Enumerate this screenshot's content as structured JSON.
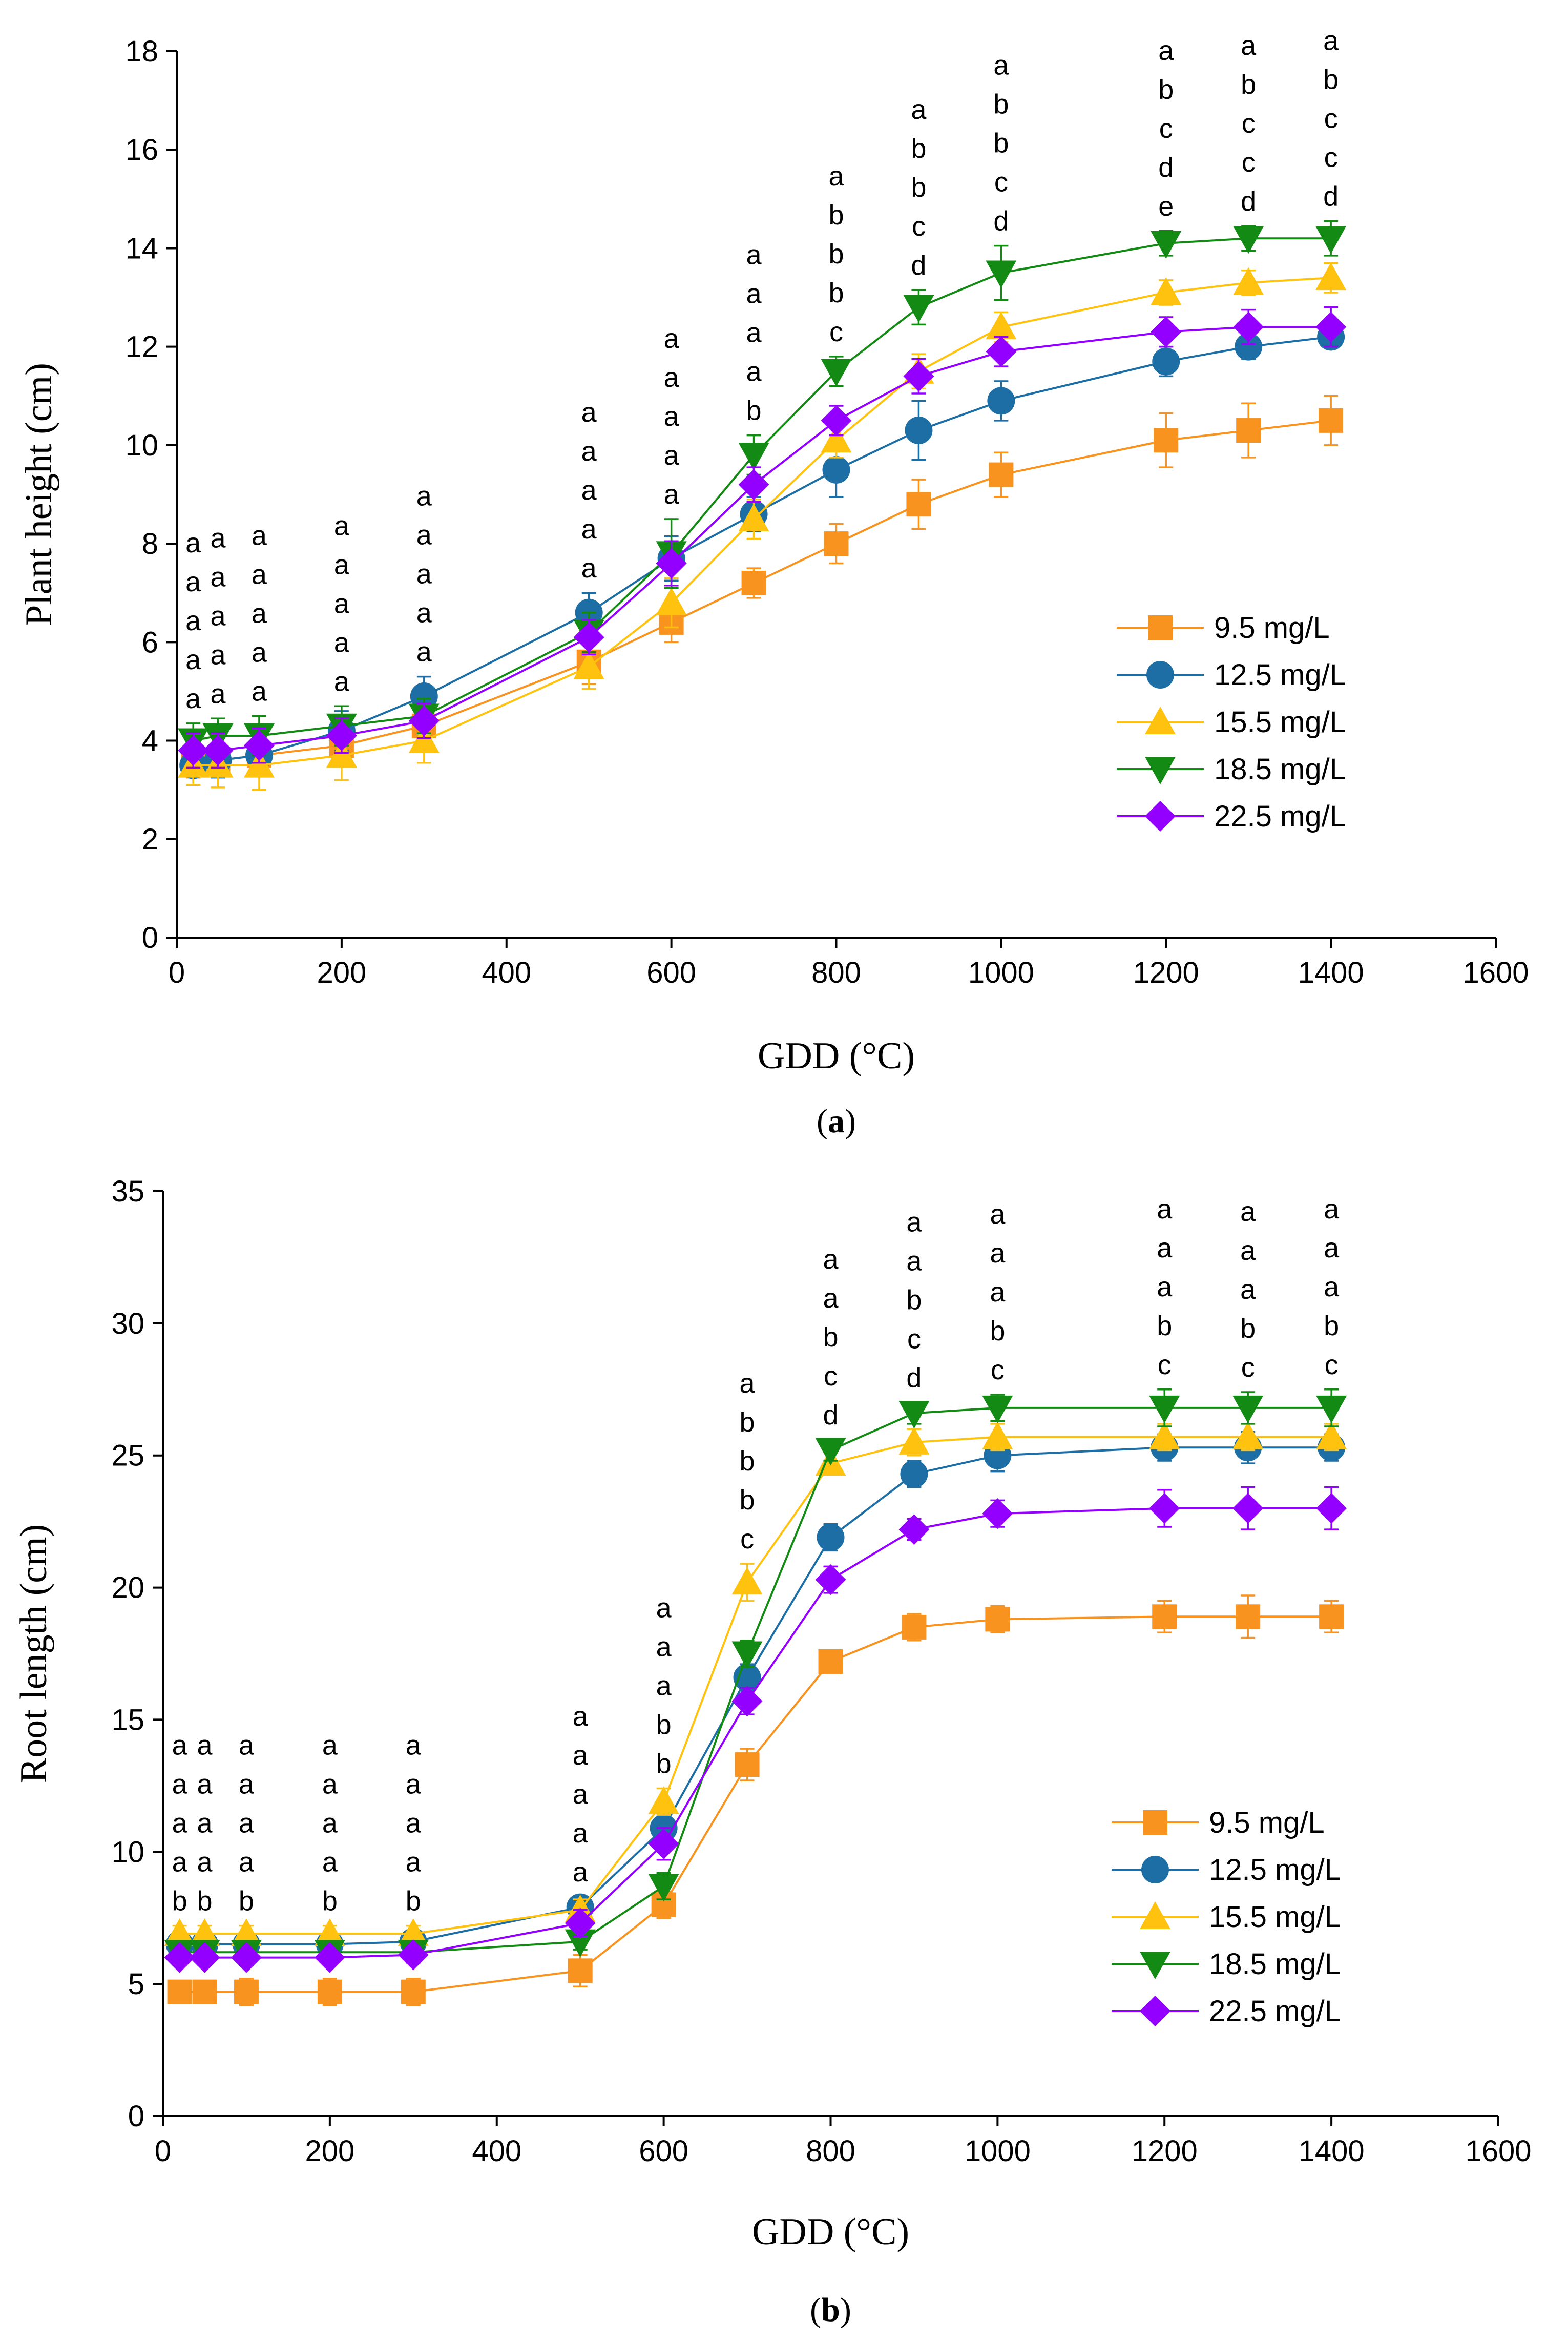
{
  "chart_data": [
    {
      "type": "line",
      "panel_label": "a",
      "title": "",
      "xlabel": "GDD (°C)",
      "ylabel": "Plant height (cm)",
      "xlim": [
        0,
        1600
      ],
      "ylim": [
        0,
        18
      ],
      "xticks": [
        0,
        200,
        400,
        600,
        800,
        1000,
        1200,
        1400,
        1600
      ],
      "yticks": [
        0,
        2,
        4,
        6,
        8,
        10,
        12,
        14,
        16,
        18
      ],
      "grid": false,
      "legend_position": "lower-right",
      "x": [
        20,
        50,
        100,
        200,
        300,
        500,
        600,
        700,
        800,
        900,
        1000,
        1200,
        1300,
        1400
      ],
      "series": [
        {
          "name": "9.5 mg/L",
          "color": "#f7931e",
          "marker": "square",
          "values": [
            3.6,
            3.6,
            3.7,
            3.9,
            4.3,
            5.6,
            6.4,
            7.2,
            8.0,
            8.8,
            9.4,
            10.1,
            10.3,
            10.5
          ],
          "errors": [
            0.35,
            0.35,
            0.35,
            0.4,
            0.45,
            0.45,
            0.4,
            0.3,
            0.4,
            0.5,
            0.45,
            0.55,
            0.55,
            0.5
          ]
        },
        {
          "name": "12.5 mg/L",
          "color": "#1c6ea4",
          "marker": "circle",
          "values": [
            3.5,
            3.6,
            3.7,
            4.2,
            4.9,
            6.6,
            7.7,
            8.6,
            9.5,
            10.3,
            10.9,
            11.7,
            12.0,
            12.2
          ],
          "errors": [
            0.4,
            0.35,
            0.35,
            0.4,
            0.4,
            0.4,
            0.45,
            0.35,
            0.55,
            0.6,
            0.4,
            0.3,
            0.25,
            0.2
          ]
        },
        {
          "name": "15.5 mg/L",
          "color": "#ffc20e",
          "marker": "triangle-up",
          "values": [
            3.5,
            3.5,
            3.5,
            3.7,
            4.0,
            5.5,
            6.8,
            8.5,
            10.1,
            11.5,
            12.4,
            13.1,
            13.3,
            13.4
          ],
          "errors": [
            0.4,
            0.45,
            0.5,
            0.5,
            0.45,
            0.45,
            0.5,
            0.4,
            0.35,
            0.35,
            0.3,
            0.25,
            0.25,
            0.3
          ]
        },
        {
          "name": "18.5 mg/L",
          "color": "#138a13",
          "marker": "triangle-down",
          "values": [
            4.0,
            4.1,
            4.1,
            4.3,
            4.5,
            6.2,
            7.8,
            9.8,
            11.5,
            12.8,
            13.5,
            14.1,
            14.2,
            14.2
          ],
          "errors": [
            0.35,
            0.35,
            0.4,
            0.4,
            0.35,
            0.4,
            0.7,
            0.4,
            0.3,
            0.35,
            0.55,
            0.25,
            0.25,
            0.35
          ]
        },
        {
          "name": "22.5 mg/L",
          "color": "#9400ff",
          "marker": "diamond",
          "values": [
            3.8,
            3.8,
            3.9,
            4.1,
            4.4,
            6.1,
            7.6,
            9.2,
            10.5,
            11.4,
            11.9,
            12.3,
            12.4,
            12.4
          ],
          "errors": [
            0.35,
            0.35,
            0.35,
            0.35,
            0.35,
            0.35,
            0.45,
            0.35,
            0.3,
            0.35,
            0.3,
            0.3,
            0.35,
            0.4
          ]
        }
      ],
      "annotations": [
        {
          "x": 20,
          "letters": [
            "a",
            "a",
            "a",
            "a",
            "a"
          ]
        },
        {
          "x": 50,
          "letters": [
            "a",
            "a",
            "a",
            "a",
            "a"
          ]
        },
        {
          "x": 100,
          "letters": [
            "a",
            "a",
            "a",
            "a",
            "a"
          ]
        },
        {
          "x": 200,
          "letters": [
            "a",
            "a",
            "a",
            "a",
            "a"
          ]
        },
        {
          "x": 300,
          "letters": [
            "a",
            "a",
            "a",
            "a",
            "a"
          ]
        },
        {
          "x": 500,
          "letters": [
            "a",
            "a",
            "a",
            "a",
            "a"
          ]
        },
        {
          "x": 600,
          "letters": [
            "a",
            "a",
            "a",
            "a",
            "a"
          ]
        },
        {
          "x": 700,
          "letters": [
            "a",
            "a",
            "a",
            "a",
            "b"
          ]
        },
        {
          "x": 800,
          "letters": [
            "a",
            "b",
            "b",
            "b",
            "c"
          ]
        },
        {
          "x": 900,
          "letters": [
            "a",
            "b",
            "b",
            "c",
            "d"
          ]
        },
        {
          "x": 1000,
          "letters": [
            "a",
            "b",
            "b",
            "c",
            "d"
          ]
        },
        {
          "x": 1200,
          "letters": [
            "a",
            "b",
            "c",
            "d",
            "e"
          ]
        },
        {
          "x": 1300,
          "letters": [
            "a",
            "b",
            "c",
            "c",
            "d"
          ]
        },
        {
          "x": 1400,
          "letters": [
            "a",
            "b",
            "c",
            "c",
            "d"
          ]
        }
      ]
    },
    {
      "type": "line",
      "panel_label": "b",
      "title": "",
      "xlabel": "GDD (°C)",
      "ylabel": "Root length (cm)",
      "xlim": [
        0,
        1600
      ],
      "ylim": [
        0,
        35
      ],
      "xticks": [
        0,
        200,
        400,
        600,
        800,
        1000,
        1200,
        1400,
        1600
      ],
      "yticks": [
        0,
        5,
        10,
        15,
        20,
        25,
        30,
        35
      ],
      "grid": false,
      "legend_position": "lower-right",
      "x": [
        20,
        50,
        100,
        200,
        300,
        500,
        600,
        700,
        800,
        900,
        1000,
        1200,
        1300,
        1400
      ],
      "series": [
        {
          "name": "9.5 mg/L",
          "color": "#f7931e",
          "marker": "square",
          "values": [
            4.7,
            4.7,
            4.7,
            4.7,
            4.7,
            5.5,
            8.0,
            13.3,
            17.2,
            18.5,
            18.8,
            18.9,
            18.9,
            18.9
          ],
          "errors": [
            0.4,
            0.4,
            0.5,
            0.5,
            0.5,
            0.6,
            0.5,
            0.6,
            0.4,
            0.5,
            0.5,
            0.6,
            0.8,
            0.6
          ]
        },
        {
          "name": "12.5 mg/L",
          "color": "#1c6ea4",
          "marker": "circle",
          "values": [
            6.5,
            6.5,
            6.5,
            6.5,
            6.6,
            7.9,
            10.9,
            16.6,
            21.9,
            24.3,
            25.0,
            25.3,
            25.3,
            25.3
          ],
          "errors": [
            0.3,
            0.3,
            0.3,
            0.3,
            0.3,
            0.4,
            0.6,
            0.5,
            0.5,
            0.5,
            0.6,
            0.5,
            0.6,
            0.5
          ]
        },
        {
          "name": "15.5 mg/L",
          "color": "#ffc20e",
          "marker": "triangle-up",
          "values": [
            6.9,
            6.9,
            6.9,
            6.9,
            6.9,
            7.8,
            11.9,
            20.2,
            24.7,
            25.5,
            25.7,
            25.7,
            25.7,
            25.7
          ],
          "errors": [
            0.3,
            0.3,
            0.3,
            0.3,
            0.3,
            0.4,
            0.5,
            0.7,
            0.4,
            0.5,
            0.5,
            0.5,
            0.5,
            0.5
          ]
        },
        {
          "name": "18.5 mg/L",
          "color": "#138a13",
          "marker": "triangle-down",
          "values": [
            6.2,
            6.2,
            6.2,
            6.2,
            6.2,
            6.6,
            8.7,
            17.5,
            25.2,
            26.6,
            26.8,
            26.8,
            26.8,
            26.8
          ],
          "errors": [
            0.3,
            0.3,
            0.3,
            0.3,
            0.3,
            0.3,
            0.5,
            0.5,
            0.4,
            0.4,
            0.5,
            0.7,
            0.6,
            0.7
          ]
        },
        {
          "name": "22.5 mg/L",
          "color": "#9400ff",
          "marker": "diamond",
          "values": [
            6.0,
            6.0,
            6.0,
            6.0,
            6.1,
            7.3,
            10.3,
            15.7,
            20.3,
            22.2,
            22.8,
            23.0,
            23.0,
            23.0
          ],
          "errors": [
            0.3,
            0.3,
            0.3,
            0.3,
            0.3,
            0.5,
            0.6,
            0.5,
            0.5,
            0.4,
            0.5,
            0.7,
            0.8,
            0.8
          ]
        }
      ],
      "annotations": [
        {
          "x": 20,
          "letters": [
            "a",
            "a",
            "a",
            "a",
            "b"
          ]
        },
        {
          "x": 50,
          "letters": [
            "a",
            "a",
            "a",
            "a",
            "b"
          ]
        },
        {
          "x": 100,
          "letters": [
            "a",
            "a",
            "a",
            "a",
            "b"
          ]
        },
        {
          "x": 200,
          "letters": [
            "a",
            "a",
            "a",
            "a",
            "b"
          ]
        },
        {
          "x": 300,
          "letters": [
            "a",
            "a",
            "a",
            "a",
            "b"
          ]
        },
        {
          "x": 500,
          "letters": [
            "a",
            "a",
            "a",
            "a",
            "a"
          ]
        },
        {
          "x": 600,
          "letters": [
            "a",
            "a",
            "a",
            "b",
            "b"
          ]
        },
        {
          "x": 700,
          "letters": [
            "a",
            "b",
            "b",
            "b",
            "c"
          ]
        },
        {
          "x": 800,
          "letters": [
            "a",
            "a",
            "b",
            "c",
            "d"
          ]
        },
        {
          "x": 900,
          "letters": [
            "a",
            "a",
            "b",
            "c",
            "d"
          ]
        },
        {
          "x": 1000,
          "letters": [
            "a",
            "a",
            "a",
            "b",
            "c"
          ]
        },
        {
          "x": 1200,
          "letters": [
            "a",
            "a",
            "a",
            "b",
            "c"
          ]
        },
        {
          "x": 1300,
          "letters": [
            "a",
            "a",
            "a",
            "b",
            "c"
          ]
        },
        {
          "x": 1400,
          "letters": [
            "a",
            "a",
            "a",
            "b",
            "c"
          ]
        }
      ]
    }
  ]
}
